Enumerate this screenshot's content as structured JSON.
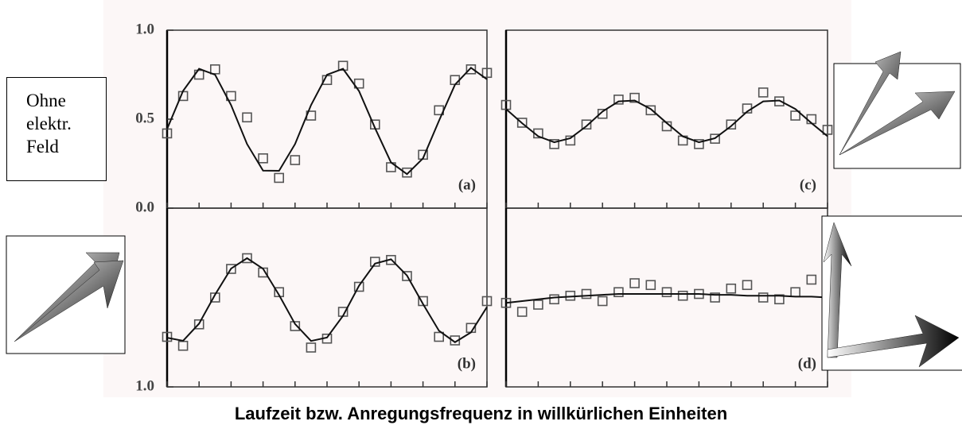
{
  "figure": {
    "xlabel": "Laufzeit bzw. Anregungsfrequenz in willkürlichen Einheiten",
    "inset_label": "Ohne\nelektr.\nFeld"
  },
  "chart_data": [
    {
      "type": "scatter",
      "panel_label": "(a)",
      "xlim": [
        0,
        10
      ],
      "xticks": [
        0,
        1,
        2,
        3,
        4,
        5,
        6,
        7,
        8,
        9,
        10
      ],
      "ylim": [
        0,
        1
      ],
      "yticks": [
        {
          "value": 0,
          "label": "0.0"
        },
        {
          "value": 0.5,
          "label": "0.5"
        },
        {
          "value": 1,
          "label": "1.0"
        }
      ],
      "x": [
        0,
        0.5,
        1,
        1.5,
        2,
        2.5,
        3,
        3.5,
        4,
        4.5,
        5,
        5.5,
        6,
        6.5,
        7,
        7.5,
        8,
        8.5,
        9,
        9.5,
        10
      ],
      "series": [
        {
          "kind": "points",
          "color": "#555555",
          "values": [
            0.42,
            0.63,
            0.75,
            0.78,
            0.63,
            0.51,
            0.28,
            0.17,
            0.27,
            0.52,
            0.72,
            0.8,
            0.7,
            0.47,
            0.23,
            0.2,
            0.3,
            0.55,
            0.72,
            0.78,
            0.76
          ]
        },
        {
          "kind": "line",
          "color": "#111111",
          "values": [
            0.445,
            0.659,
            0.783,
            0.75,
            0.579,
            0.36,
            0.211,
            0.21,
            0.36,
            0.579,
            0.75,
            0.783,
            0.658,
            0.45,
            0.257,
            0.191,
            0.28,
            0.491,
            0.694,
            0.789,
            0.724
          ]
        }
      ]
    },
    {
      "type": "scatter",
      "panel_label": "(b)",
      "xlim": [
        0,
        10
      ],
      "xticks": [
        0,
        1,
        2,
        3,
        4,
        5,
        6,
        7,
        8,
        9,
        10
      ],
      "ylim": [
        1,
        0
      ],
      "yticks": [
        {
          "value": 1,
          "label": "1.0"
        }
      ],
      "x": [
        0,
        0.5,
        1,
        1.5,
        2,
        2.5,
        3,
        3.5,
        4,
        4.5,
        5,
        5.5,
        6,
        6.5,
        7,
        7.5,
        8,
        8.5,
        9,
        9.5,
        10
      ],
      "series": [
        {
          "kind": "points",
          "color": "#555555",
          "values": [
            0.72,
            0.77,
            0.65,
            0.5,
            0.34,
            0.28,
            0.36,
            0.47,
            0.66,
            0.78,
            0.73,
            0.58,
            0.44,
            0.3,
            0.29,
            0.38,
            0.52,
            0.72,
            0.74,
            0.67,
            0.52
          ]
        },
        {
          "kind": "line",
          "color": "#111111",
          "values": [
            0.725,
            0.742,
            0.646,
            0.484,
            0.338,
            0.28,
            0.339,
            0.486,
            0.648,
            0.743,
            0.724,
            0.602,
            0.434,
            0.31,
            0.286,
            0.377,
            0.536,
            0.686,
            0.75,
            0.695,
            0.553
          ]
        }
      ]
    },
    {
      "type": "scatter",
      "panel_label": "(c)",
      "xlim": [
        0,
        10
      ],
      "xticks": [
        0,
        1,
        2,
        3,
        4,
        5,
        6,
        7,
        8,
        9,
        10
      ],
      "ylim": [
        0,
        1
      ],
      "x": [
        0,
        0.5,
        1,
        1.5,
        2,
        2.5,
        3,
        3.5,
        4,
        4.5,
        5,
        5.5,
        6,
        6.5,
        7,
        7.5,
        8,
        8.5,
        9,
        9.5,
        10
      ],
      "series": [
        {
          "kind": "points",
          "color": "#555555",
          "values": [
            0.58,
            0.48,
            0.42,
            0.36,
            0.38,
            0.47,
            0.53,
            0.61,
            0.62,
            0.55,
            0.46,
            0.38,
            0.36,
            0.39,
            0.47,
            0.56,
            0.65,
            0.6,
            0.52,
            0.5,
            0.44
          ]
        },
        {
          "kind": "line",
          "color": "#111111",
          "values": [
            0.557,
            0.477,
            0.404,
            0.37,
            0.393,
            0.461,
            0.543,
            0.6,
            0.605,
            0.557,
            0.478,
            0.403,
            0.37,
            0.393,
            0.461,
            0.543,
            0.6,
            0.605,
            0.557,
            0.478,
            0.404
          ]
        }
      ]
    },
    {
      "type": "scatter",
      "panel_label": "(d)",
      "xlim": [
        0,
        10
      ],
      "xticks": [
        0,
        1,
        2,
        3,
        4,
        5,
        6,
        7,
        8,
        9,
        10
      ],
      "ylim": [
        0,
        1
      ],
      "x": [
        0,
        0.5,
        1,
        1.5,
        2,
        2.5,
        3,
        3.5,
        4,
        4.5,
        5,
        5.5,
        6,
        6.5,
        7,
        7.5,
        8,
        8.5,
        9,
        9.5,
        10
      ],
      "series": [
        {
          "kind": "points",
          "color": "#555555",
          "values": [
            0.47,
            0.42,
            0.46,
            0.49,
            0.51,
            0.52,
            0.48,
            0.53,
            0.58,
            0.57,
            0.53,
            0.51,
            0.52,
            0.5,
            0.55,
            0.57,
            0.5,
            0.49,
            0.53,
            0.6,
            0.5
          ]
        },
        {
          "kind": "line",
          "color": "#111111",
          "values": [
            0.47,
            0.48,
            0.49,
            0.5,
            0.505,
            0.51,
            0.515,
            0.52,
            0.52,
            0.52,
            0.52,
            0.52,
            0.52,
            0.515,
            0.515,
            0.51,
            0.51,
            0.51,
            0.505,
            0.505,
            0.5
          ]
        }
      ]
    }
  ]
}
